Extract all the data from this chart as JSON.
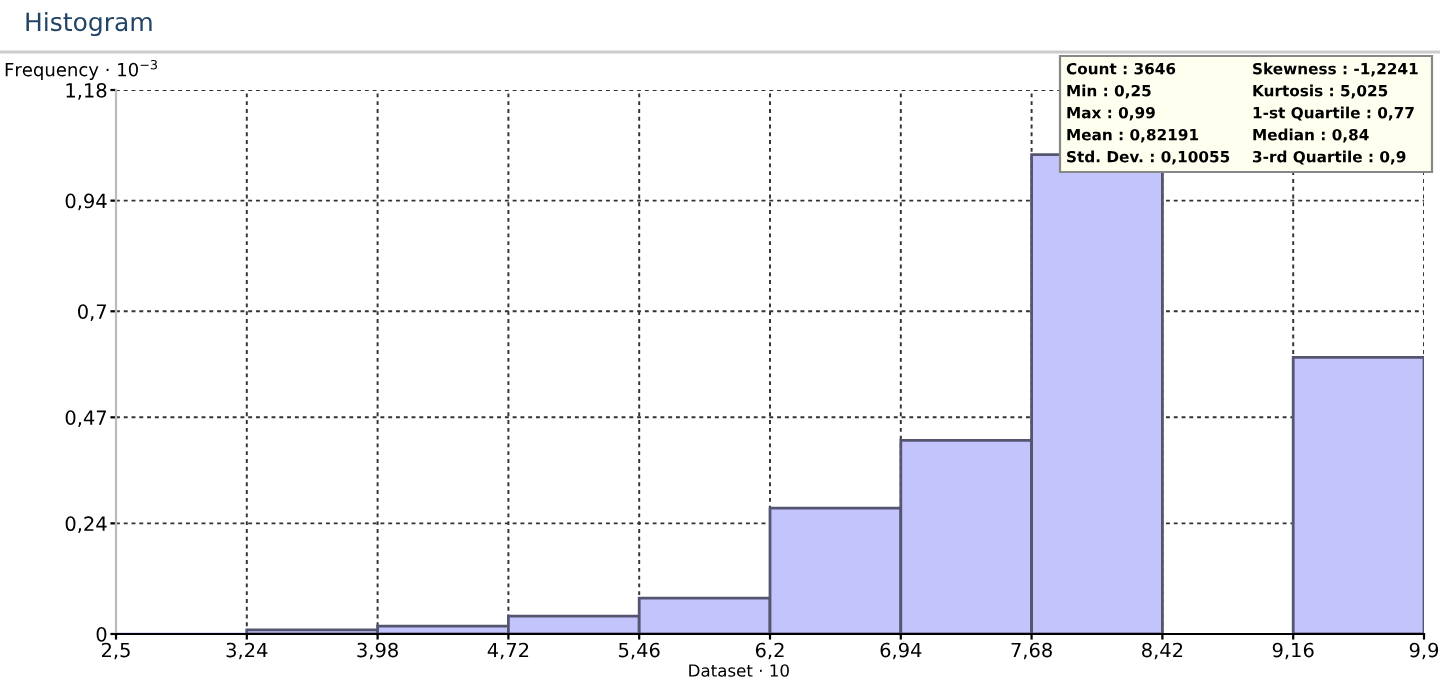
{
  "chart_data": {
    "type": "histogram",
    "title": "Histogram",
    "ylabel": "Frequency · 10$^{−3}$",
    "xlabel": "Dataset · 10",
    "bins": [
      2.5,
      3.24,
      3.98,
      4.72,
      5.46,
      6.2,
      6.94,
      7.68,
      8.42,
      9.16,
      9.9
    ],
    "values": [
      0,
      0.009,
      0.017,
      0.039,
      0.078,
      0.273,
      0.42,
      1.04,
      null,
      0.6
    ],
    "color": "#c4c4fc",
    "xlim": [
      2.5,
      9.9
    ],
    "xticks": [
      {
        "value": 2.5,
        "label": "2,5"
      },
      {
        "value": 3.24,
        "label": "3,24"
      },
      {
        "value": 3.98,
        "label": "3,98"
      },
      {
        "value": 4.72,
        "label": "4,72"
      },
      {
        "value": 5.46,
        "label": "5,46"
      },
      {
        "value": 6.2,
        "label": "6,2"
      },
      {
        "value": 6.94,
        "label": "6,94"
      },
      {
        "value": 7.68,
        "label": "7,68"
      },
      {
        "value": 8.42,
        "label": "8,42"
      },
      {
        "value": 9.16,
        "label": "9,16"
      },
      {
        "value": 9.9,
        "label": "9,9"
      }
    ],
    "ylim": [
      0,
      1.18
    ],
    "yticks": [
      0,
      {
        "value": 0.24,
        "label": "0,24"
      },
      {
        "value": 0.47,
        "label": "0,47"
      },
      {
        "value": 0.7,
        "label": "0,7"
      },
      {
        "value": 0.94,
        "label": "0,94"
      },
      {
        "value": 1.18,
        "label": "1,18"
      }
    ],
    "grid": true,
    "annotations": [
      "Count : 3646",
      "Min : 0,25",
      "Max : 0,99",
      "Mean : 0,82191",
      "Std. Dev. : 0,10055",
      "Skewness : -1,2241",
      "Kurtosis : 5,025",
      "1-st Quartile : 0,77",
      "Median : 0,84",
      "3-rd Quartile : 0,9"
    ]
  }
}
